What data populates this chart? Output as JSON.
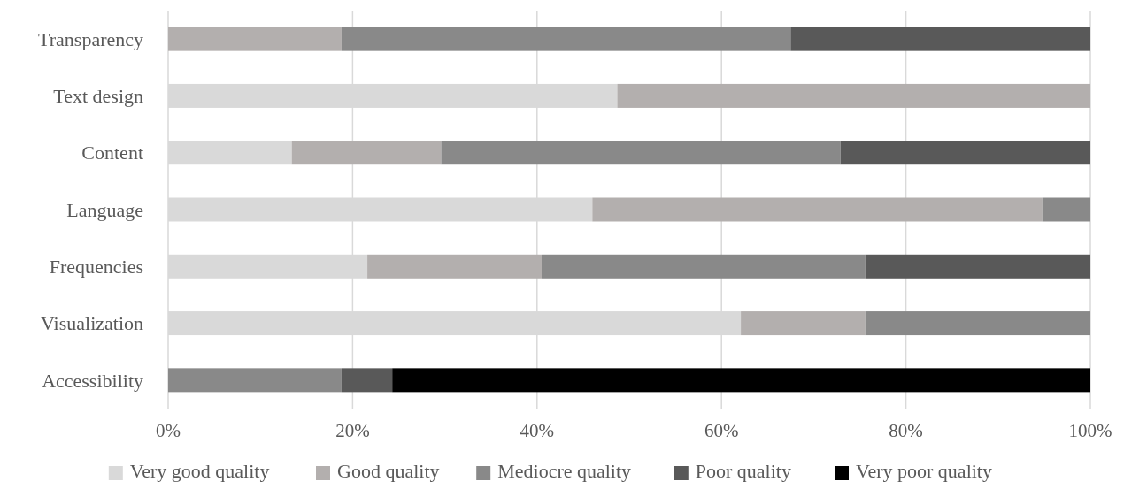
{
  "chart_data": {
    "type": "bar",
    "orientation": "horizontal",
    "stacked": true,
    "categories": [
      "Transparency",
      "Text design",
      "Content",
      "Language",
      "Frequencies",
      "Visualization",
      "Accessibility"
    ],
    "series": [
      {
        "name": "Very good quality",
        "color": "#d9d9d9",
        "values": [
          0,
          48.7,
          13.4,
          46.0,
          21.6,
          62.1,
          0
        ]
      },
      {
        "name": "Good quality",
        "color": "#b3afae",
        "values": [
          18.8,
          51.3,
          16.2,
          48.8,
          18.9,
          13.5,
          0
        ]
      },
      {
        "name": "Mediocre quality",
        "color": "#898989",
        "values": [
          48.7,
          0,
          43.3,
          5.2,
          35.1,
          24.4,
          18.8
        ]
      },
      {
        "name": "Poor quality",
        "color": "#595959",
        "values": [
          32.5,
          0,
          27.1,
          0,
          24.4,
          0,
          5.5
        ]
      },
      {
        "name": "Very poor quality",
        "color": "#000000",
        "values": [
          0,
          0,
          0,
          0,
          0,
          0,
          75.7
        ]
      }
    ],
    "xlim": [
      0,
      100
    ],
    "xticks": [
      {
        "value": 0,
        "label": "0%"
      },
      {
        "value": 20,
        "label": "20%"
      },
      {
        "value": 40,
        "label": "40%"
      },
      {
        "value": 60,
        "label": "60%"
      },
      {
        "value": 80,
        "label": "80%"
      },
      {
        "value": 100,
        "label": "100%"
      }
    ],
    "grid": "x",
    "legend": "bottom"
  }
}
